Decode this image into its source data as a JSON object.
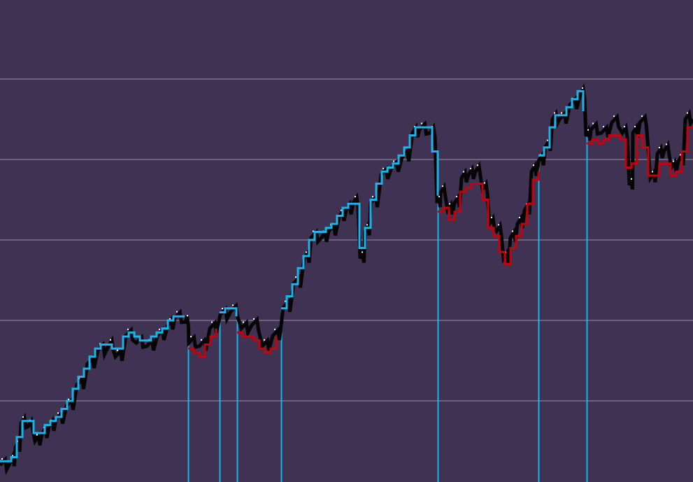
{
  "chart_data": {
    "type": "line",
    "title": "",
    "xlabel": "",
    "ylabel": "",
    "grid": true,
    "grid_levels": [
      1,
      2,
      3,
      4,
      5
    ],
    "xlim": [
      0,
      198.2
    ],
    "ylim": [
      0,
      6
    ],
    "colors": {
      "background": "#3f3252",
      "grid": "#9a92a6",
      "price": "#050505",
      "trend_up": "#18b4ec",
      "trend_down": "#c8000a",
      "signal_line": "#18b4ec"
    },
    "series": [
      {
        "key": "price",
        "x": [
          0,
          3,
          4.4,
          6,
          8,
          10,
          12,
          14,
          16,
          19,
          22,
          25,
          28,
          31,
          33,
          36,
          39,
          42,
          45,
          48,
          50,
          53,
          54,
          57,
          60,
          63,
          66,
          69,
          72,
          75,
          78,
          81,
          84,
          87,
          89,
          92,
          94,
          97,
          99,
          101,
          103,
          104.4,
          106,
          109,
          112,
          115,
          118,
          120,
          123,
          125,
          126,
          128,
          130,
          132,
          134,
          136,
          138,
          140,
          142,
          144,
          146,
          148,
          150,
          152,
          154,
          156,
          158,
          160,
          163,
          166,
          167.6,
          169,
          172,
          175,
          178,
          180,
          181,
          183,
          186,
          188,
          190,
          192,
          194,
          196,
          198.2
        ],
        "y": [
          0.2,
          0.24,
          0.42,
          0.72,
          0.68,
          0.5,
          0.59,
          0.68,
          0.77,
          0.94,
          1.2,
          1.46,
          1.63,
          1.68,
          1.55,
          1.81,
          1.72,
          1.68,
          1.81,
          1.94,
          2.03,
          1.98,
          1.72,
          1.68,
          1.9,
          2.07,
          2.11,
          1.9,
          1.94,
          1.68,
          1.81,
          2.16,
          2.46,
          2.77,
          3.03,
          3.03,
          3.11,
          3.29,
          3.37,
          3.46,
          2.77,
          3.11,
          3.46,
          3.81,
          3.9,
          4.03,
          4.33,
          4.37,
          4.33,
          3.46,
          3.59,
          3.37,
          3.46,
          3.77,
          3.81,
          3.85,
          3.63,
          3.2,
          3.11,
          2.77,
          3.03,
          3.2,
          3.37,
          3.85,
          3.98,
          4.16,
          4.5,
          4.5,
          4.68,
          4.81,
          4.29,
          4.37,
          4.33,
          4.46,
          4.33,
          3.68,
          4.33,
          4.46,
          3.77,
          4.07,
          4.11,
          3.9,
          3.98,
          4.5,
          4.5
        ]
      }
    ],
    "trend_segments": [
      {
        "dir": "up",
        "from": 0,
        "to": 53.8
      },
      {
        "dir": "down",
        "from": 53.8,
        "to": 62.8
      },
      {
        "dir": "up",
        "from": 62.8,
        "to": 67.8
      },
      {
        "dir": "down",
        "from": 67.8,
        "to": 80.4
      },
      {
        "dir": "up",
        "from": 80.4,
        "to": 125.2
      },
      {
        "dir": "down",
        "from": 125.2,
        "to": 154
      },
      {
        "dir": "up",
        "from": 154,
        "to": 167.8
      },
      {
        "dir": "down",
        "from": 167.8,
        "to": 198.2
      }
    ],
    "signal_bars": [
      53.8,
      62.8,
      67.8,
      80.4,
      125.2,
      154,
      167.8
    ]
  }
}
